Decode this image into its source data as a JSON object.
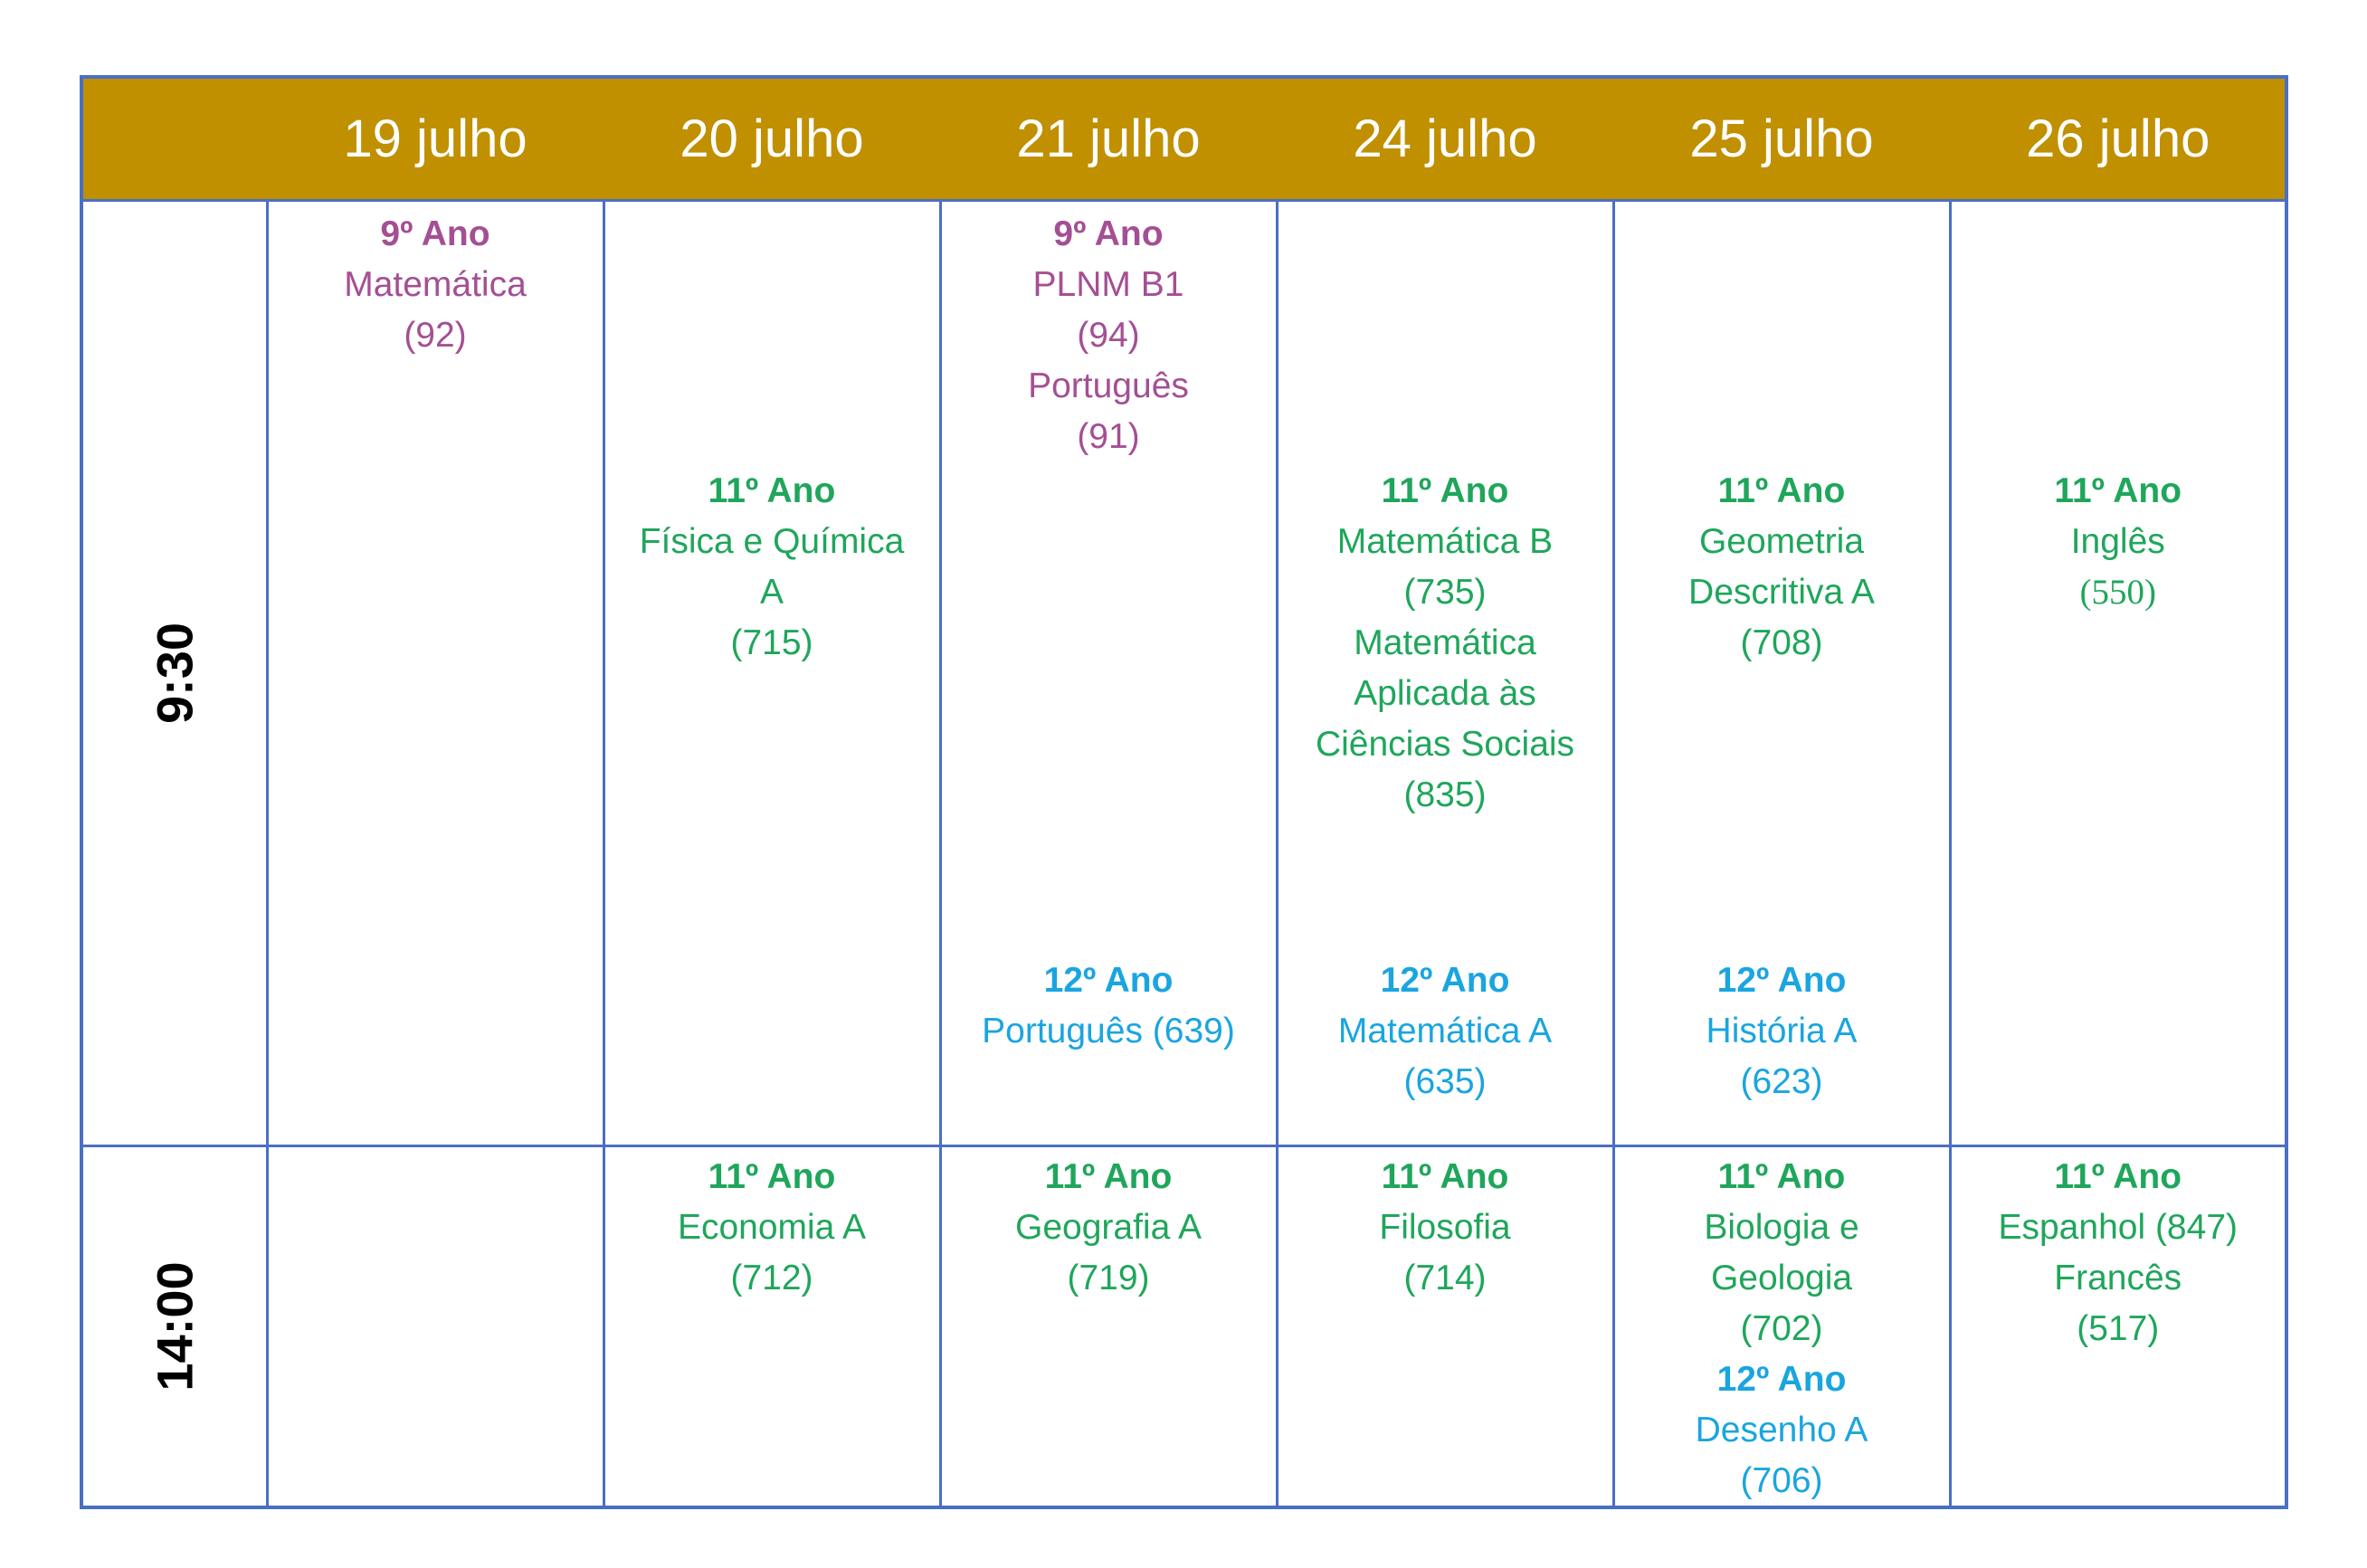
{
  "header": {
    "dates": [
      "19 julho",
      "20 julho",
      "21 julho",
      "24 julho",
      "25 julho",
      "26 julho"
    ]
  },
  "rows": {
    "morning": {
      "time": "9:30"
    },
    "afternoon": {
      "time": "14:00"
    }
  },
  "morning": {
    "d19": {
      "grade": "9º Ano",
      "lines": [
        "Matemática",
        "(92)"
      ]
    },
    "d20": {
      "grade": "11º Ano",
      "lines": [
        "Física e Química",
        "A",
        "(715)"
      ]
    },
    "d21": {
      "top": {
        "grade": "9º Ano",
        "lines": [
          "PLNM B1",
          "(94)",
          "Português",
          "(91)"
        ]
      },
      "bottom": {
        "grade": "12º Ano",
        "lines": [
          "Português (639)"
        ]
      }
    },
    "d24": {
      "top": {
        "grade": "11º Ano",
        "lines": [
          "Matemática B",
          "(735)",
          "Matemática",
          "Aplicada às",
          "Ciências Sociais",
          "(835)"
        ]
      },
      "bottom": {
        "grade": "12º Ano",
        "lines": [
          "Matemática A",
          "(635)"
        ]
      }
    },
    "d25": {
      "top": {
        "grade": "11º Ano",
        "lines": [
          "Geometria",
          "Descritiva A",
          "(708)"
        ]
      },
      "bottom": {
        "grade": "12º Ano",
        "lines": [
          "História A",
          "(623)"
        ]
      }
    },
    "d26": {
      "grade": "11º Ano",
      "lines": [
        "Inglês",
        "(550)"
      ]
    }
  },
  "afternoon": {
    "d20": {
      "grade": "11º Ano",
      "lines": [
        "Economia A",
        "(712)"
      ]
    },
    "d21": {
      "grade": "11º Ano",
      "lines": [
        "Geografia A",
        "(719)"
      ]
    },
    "d24": {
      "grade": "11º Ano",
      "lines": [
        "Filosofia",
        "(714)"
      ]
    },
    "d25": {
      "first": {
        "grade": "11º Ano",
        "lines": [
          "Biologia e",
          "Geologia",
          "(702)"
        ]
      },
      "second": {
        "grade": "12º Ano",
        "lines": [
          "Desenho A",
          "(706)"
        ]
      }
    },
    "d26": {
      "grade": "11º Ano",
      "lines": [
        "Espanhol (847)",
        "Francês",
        "(517)"
      ]
    }
  },
  "colors": {
    "header_bg": "#c09000",
    "border": "#4a6fc4",
    "grade_9": "#a44f94",
    "grade_11": "#1fa65b",
    "grade_12": "#1aa5e0"
  }
}
